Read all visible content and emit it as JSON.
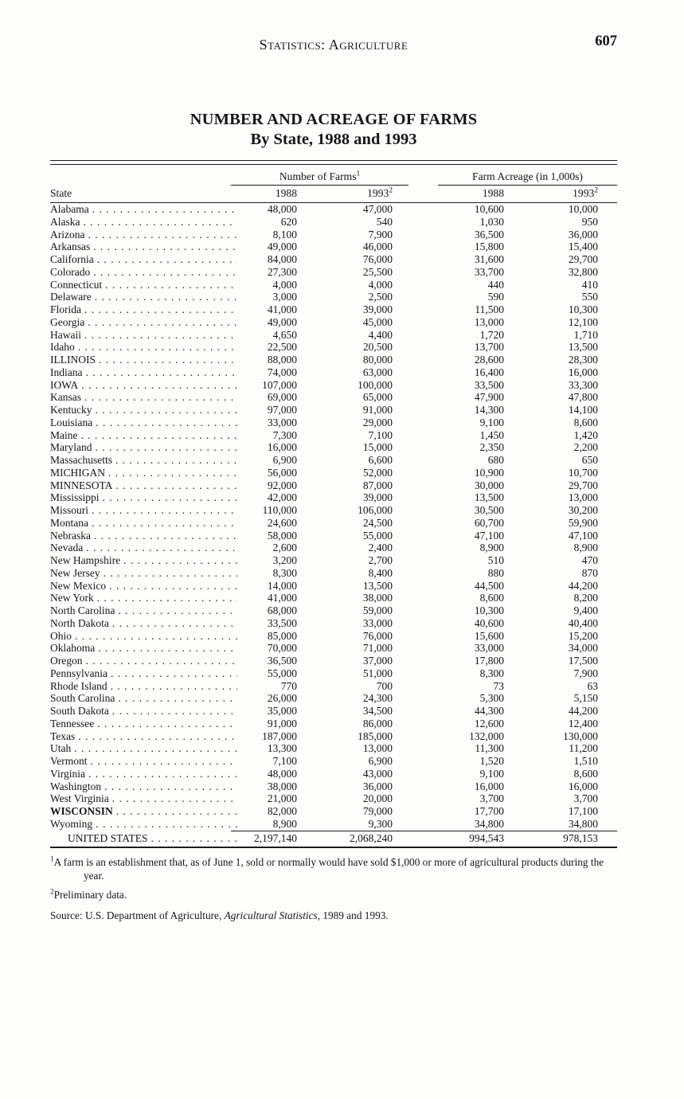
{
  "page": {
    "header": {
      "section_title": "Statistics: Agriculture",
      "page_number": "607"
    },
    "title_line1": "NUMBER AND ACREAGE OF FARMS",
    "title_line2": "By State, 1988 and 1993"
  },
  "table": {
    "group_headers": {
      "farms_label": "Number of Farms",
      "farms_sup": "1",
      "acreage_label": "Farm Acreage (in 1,000s)"
    },
    "column_headers": {
      "state": "State",
      "farms_1988": "1988",
      "farms_1993": "1993",
      "farms_1993_sup": "2",
      "acreage_1988": "1988",
      "acreage_1993": "1993",
      "acreage_1993_sup": "2"
    },
    "rows": [
      {
        "state": "Alabama",
        "farms_1988": "48,000",
        "farms_1993": "47,000",
        "acreage_1988": "10,600",
        "acreage_1993": "10,000"
      },
      {
        "state": "Alaska",
        "farms_1988": "620",
        "farms_1993": "540",
        "acreage_1988": "1,030",
        "acreage_1993": "950"
      },
      {
        "state": "Arizona",
        "farms_1988": "8,100",
        "farms_1993": "7,900",
        "acreage_1988": "36,500",
        "acreage_1993": "36,000"
      },
      {
        "state": "Arkansas",
        "farms_1988": "49,000",
        "farms_1993": "46,000",
        "acreage_1988": "15,800",
        "acreage_1993": "15,400"
      },
      {
        "state": "California",
        "farms_1988": "84,000",
        "farms_1993": "76,000",
        "acreage_1988": "31,600",
        "acreage_1993": "29,700"
      },
      {
        "state": "Colorado",
        "farms_1988": "27,300",
        "farms_1993": "25,500",
        "acreage_1988": "33,700",
        "acreage_1993": "32,800"
      },
      {
        "state": "Connecticut",
        "farms_1988": "4,000",
        "farms_1993": "4,000",
        "acreage_1988": "440",
        "acreage_1993": "410"
      },
      {
        "state": "Delaware",
        "farms_1988": "3,000",
        "farms_1993": "2,500",
        "acreage_1988": "590",
        "acreage_1993": "550"
      },
      {
        "state": "Florida",
        "farms_1988": "41,000",
        "farms_1993": "39,000",
        "acreage_1988": "11,500",
        "acreage_1993": "10,300"
      },
      {
        "state": "Georgia",
        "farms_1988": "49,000",
        "farms_1993": "45,000",
        "acreage_1988": "13,000",
        "acreage_1993": "12,100"
      },
      {
        "state": "Hawaii",
        "farms_1988": "4,650",
        "farms_1993": "4,400",
        "acreage_1988": "1,720",
        "acreage_1993": "1,710"
      },
      {
        "state": "Idaho",
        "farms_1988": "22,500",
        "farms_1993": "20,500",
        "acreage_1988": "13,700",
        "acreage_1993": "13,500"
      },
      {
        "state": "ILLINOIS",
        "farms_1988": "88,000",
        "farms_1993": "80,000",
        "acreage_1988": "28,600",
        "acreage_1993": "28,300"
      },
      {
        "state": "Indiana",
        "farms_1988": "74,000",
        "farms_1993": "63,000",
        "acreage_1988": "16,400",
        "acreage_1993": "16,000"
      },
      {
        "state": "IOWA",
        "farms_1988": "107,000",
        "farms_1993": "100,000",
        "acreage_1988": "33,500",
        "acreage_1993": "33,300"
      },
      {
        "state": "Kansas",
        "farms_1988": "69,000",
        "farms_1993": "65,000",
        "acreage_1988": "47,900",
        "acreage_1993": "47,800"
      },
      {
        "state": "Kentucky",
        "farms_1988": "97,000",
        "farms_1993": "91,000",
        "acreage_1988": "14,300",
        "acreage_1993": "14,100"
      },
      {
        "state": "Louisiana",
        "farms_1988": "33,000",
        "farms_1993": "29,000",
        "acreage_1988": "9,100",
        "acreage_1993": "8,600"
      },
      {
        "state": "Maine",
        "farms_1988": "7,300",
        "farms_1993": "7,100",
        "acreage_1988": "1,450",
        "acreage_1993": "1,420"
      },
      {
        "state": "Maryland",
        "farms_1988": "16,000",
        "farms_1993": "15,000",
        "acreage_1988": "2,350",
        "acreage_1993": "2,200"
      },
      {
        "state": "Massachusetts",
        "farms_1988": "6,900",
        "farms_1993": "6,600",
        "acreage_1988": "680",
        "acreage_1993": "650"
      },
      {
        "state": "MICHIGAN",
        "farms_1988": "56,000",
        "farms_1993": "52,000",
        "acreage_1988": "10,900",
        "acreage_1993": "10,700"
      },
      {
        "state": "MINNESOTA",
        "farms_1988": "92,000",
        "farms_1993": "87,000",
        "acreage_1988": "30,000",
        "acreage_1993": "29,700"
      },
      {
        "state": "Mississippi",
        "farms_1988": "42,000",
        "farms_1993": "39,000",
        "acreage_1988": "13,500",
        "acreage_1993": "13,000"
      },
      {
        "state": "Missouri",
        "farms_1988": "110,000",
        "farms_1993": "106,000",
        "acreage_1988": "30,500",
        "acreage_1993": "30,200"
      },
      {
        "state": "Montana",
        "farms_1988": "24,600",
        "farms_1993": "24,500",
        "acreage_1988": "60,700",
        "acreage_1993": "59,900"
      },
      {
        "state": "Nebraska",
        "farms_1988": "58,000",
        "farms_1993": "55,000",
        "acreage_1988": "47,100",
        "acreage_1993": "47,100"
      },
      {
        "state": "Nevada",
        "farms_1988": "2,600",
        "farms_1993": "2,400",
        "acreage_1988": "8,900",
        "acreage_1993": "8,900"
      },
      {
        "state": "New Hampshire",
        "farms_1988": "3,200",
        "farms_1993": "2,700",
        "acreage_1988": "510",
        "acreage_1993": "470"
      },
      {
        "state": "New Jersey",
        "farms_1988": "8,300",
        "farms_1993": "8,400",
        "acreage_1988": "880",
        "acreage_1993": "870"
      },
      {
        "state": "New Mexico",
        "farms_1988": "14,000",
        "farms_1993": "13,500",
        "acreage_1988": "44,500",
        "acreage_1993": "44,200"
      },
      {
        "state": "New York",
        "farms_1988": "41,000",
        "farms_1993": "38,000",
        "acreage_1988": "8,600",
        "acreage_1993": "8,200"
      },
      {
        "state": "North Carolina",
        "farms_1988": "68,000",
        "farms_1993": "59,000",
        "acreage_1988": "10,300",
        "acreage_1993": "9,400"
      },
      {
        "state": "North Dakota",
        "farms_1988": "33,500",
        "farms_1993": "33,000",
        "acreage_1988": "40,600",
        "acreage_1993": "40,400"
      },
      {
        "state": "Ohio",
        "farms_1988": "85,000",
        "farms_1993": "76,000",
        "acreage_1988": "15,600",
        "acreage_1993": "15,200"
      },
      {
        "state": "Oklahoma",
        "farms_1988": "70,000",
        "farms_1993": "71,000",
        "acreage_1988": "33,000",
        "acreage_1993": "34,000"
      },
      {
        "state": "Oregon",
        "farms_1988": "36,500",
        "farms_1993": "37,000",
        "acreage_1988": "17,800",
        "acreage_1993": "17,500"
      },
      {
        "state": "Pennsylvania",
        "farms_1988": "55,000",
        "farms_1993": "51,000",
        "acreage_1988": "8,300",
        "acreage_1993": "7,900"
      },
      {
        "state": "Rhode Island",
        "farms_1988": "770",
        "farms_1993": "700",
        "acreage_1988": "73",
        "acreage_1993": "63"
      },
      {
        "state": "South Carolina",
        "farms_1988": "26,000",
        "farms_1993": "24,300",
        "acreage_1988": "5,300",
        "acreage_1993": "5,150"
      },
      {
        "state": "South Dakota",
        "farms_1988": "35,000",
        "farms_1993": "34,500",
        "acreage_1988": "44,300",
        "acreage_1993": "44,200"
      },
      {
        "state": "Tennessee",
        "farms_1988": "91,000",
        "farms_1993": "86,000",
        "acreage_1988": "12,600",
        "acreage_1993": "12,400"
      },
      {
        "state": "Texas",
        "farms_1988": "187,000",
        "farms_1993": "185,000",
        "acreage_1988": "132,000",
        "acreage_1993": "130,000"
      },
      {
        "state": "Utah",
        "farms_1988": "13,300",
        "farms_1993": "13,000",
        "acreage_1988": "11,300",
        "acreage_1993": "11,200"
      },
      {
        "state": "Vermont",
        "farms_1988": "7,100",
        "farms_1993": "6,900",
        "acreage_1988": "1,520",
        "acreage_1993": "1,510"
      },
      {
        "state": "Virginia",
        "farms_1988": "48,000",
        "farms_1993": "43,000",
        "acreage_1988": "9,100",
        "acreage_1993": "8,600"
      },
      {
        "state": "Washington",
        "farms_1988": "38,000",
        "farms_1993": "36,000",
        "acreage_1988": "16,000",
        "acreage_1993": "16,000"
      },
      {
        "state": "West Virginia",
        "farms_1988": "21,000",
        "farms_1993": "20,000",
        "acreage_1988": "3,700",
        "acreage_1993": "3,700"
      },
      {
        "state": "WISCONSIN",
        "farms_1988": "82,000",
        "farms_1993": "79,000",
        "acreage_1988": "17,700",
        "acreage_1993": "17,100",
        "b": true
      },
      {
        "state": "Wyoming",
        "farms_1988": "8,900",
        "farms_1993": "9,300",
        "acreage_1988": "34,800",
        "acreage_1993": "34,800"
      }
    ],
    "total_row": {
      "state": "UNITED STATES",
      "farms_1988": "2,197,140",
      "farms_1993": "2,068,240",
      "acreage_1988": "994,543",
      "acreage_1993": "978,153"
    }
  },
  "footnotes": {
    "fn1_sup": "1",
    "fn1_text": "A farm is an establishment that, as of June 1, sold or normally would have sold $1,000 or more of agricultural products during the year.",
    "fn2_sup": "2",
    "fn2_text": "Preliminary data.",
    "source_prefix": "Source: U.S. Department of Agriculture, ",
    "source_italic": "Agricultural Statistics,",
    "source_suffix": " 1989 and 1993."
  }
}
